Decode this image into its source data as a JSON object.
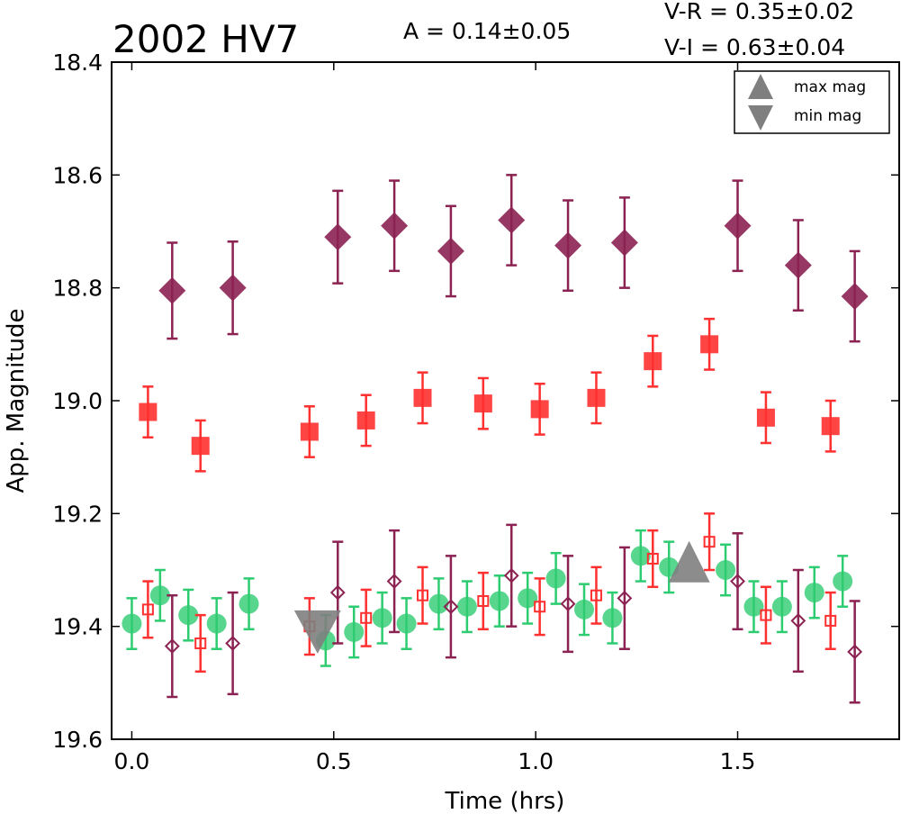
{
  "chart_data": {
    "type": "scatter",
    "title": "2002 HV7",
    "annotations": {
      "amplitude": "A  = 0.14±0.05",
      "color_vr": "V-R = 0.35±0.02",
      "color_vi": "V-I  = 0.63±0.04"
    },
    "xlabel": "Time (hrs)",
    "ylabel": "App. Magnitude",
    "xlim": [
      -0.05,
      1.9
    ],
    "ylim": [
      19.6,
      18.4
    ],
    "y_inverted": true,
    "x_ticks": [
      "0.0",
      "0.5",
      "1.0",
      "1.5"
    ],
    "y_ticks": [
      "18.4",
      "18.6",
      "18.8",
      "19.0",
      "19.2",
      "19.4",
      "19.6"
    ],
    "legend": {
      "position": "top-right",
      "entries": [
        "max mag",
        "min mag"
      ]
    },
    "colors": {
      "purple": "#8b2252",
      "red": "#ff3030",
      "green": "#2ecc71",
      "gray": "#7f7f7f"
    },
    "series": [
      {
        "marker": "diamond-filled",
        "color": "#8b2252",
        "x": [
          0.1,
          0.25,
          0.51,
          0.65,
          0.79,
          0.94,
          1.08,
          1.22,
          1.5,
          1.65,
          1.79
        ],
        "y": [
          18.805,
          18.8,
          18.71,
          18.69,
          18.735,
          18.68,
          18.725,
          18.72,
          18.69,
          18.76,
          18.815
        ],
        "err": [
          0.085,
          0.082,
          0.082,
          0.08,
          0.08,
          0.08,
          0.08,
          0.08,
          0.08,
          0.08,
          0.08
        ]
      },
      {
        "marker": "square-filled",
        "color": "#ff3030",
        "x": [
          0.04,
          0.17,
          0.44,
          0.58,
          0.72,
          0.87,
          1.01,
          1.15,
          1.29,
          1.43,
          1.57,
          1.73
        ],
        "y": [
          19.02,
          19.08,
          19.055,
          19.035,
          18.995,
          19.005,
          19.015,
          18.995,
          18.93,
          18.9,
          19.03,
          19.045
        ],
        "err": [
          0.045,
          0.045,
          0.045,
          0.045,
          0.045,
          0.045,
          0.045,
          0.045,
          0.045,
          0.045,
          0.045,
          0.045
        ]
      },
      {
        "marker": "circle-filled",
        "color": "#2ecc71",
        "x": [
          0.0,
          0.07,
          0.14,
          0.21,
          0.29,
          0.48,
          0.55,
          0.62,
          0.68,
          0.76,
          0.83,
          0.91,
          0.98,
          1.05,
          1.12,
          1.19,
          1.26,
          1.33,
          1.47,
          1.54,
          1.61,
          1.69,
          1.76
        ],
        "y": [
          19.395,
          19.345,
          19.38,
          19.395,
          19.36,
          19.425,
          19.41,
          19.385,
          19.395,
          19.36,
          19.365,
          19.355,
          19.35,
          19.315,
          19.37,
          19.385,
          19.275,
          19.295,
          19.3,
          19.365,
          19.365,
          19.34,
          19.32
        ],
        "err": [
          0.045,
          0.045,
          0.045,
          0.045,
          0.045,
          0.045,
          0.045,
          0.045,
          0.045,
          0.045,
          0.045,
          0.045,
          0.045,
          0.045,
          0.045,
          0.045,
          0.045,
          0.045,
          0.045,
          0.045,
          0.045,
          0.045,
          0.045
        ]
      },
      {
        "marker": "square-open",
        "color": "#ff3030",
        "x": [
          0.04,
          0.17,
          0.44,
          0.58,
          0.72,
          0.87,
          1.01,
          1.15,
          1.29,
          1.43,
          1.57,
          1.73
        ],
        "y": [
          19.37,
          19.43,
          19.4,
          19.385,
          19.345,
          19.355,
          19.365,
          19.345,
          19.28,
          19.25,
          19.38,
          19.39
        ],
        "err": [
          0.05,
          0.05,
          0.05,
          0.05,
          0.05,
          0.05,
          0.05,
          0.05,
          0.05,
          0.05,
          0.05,
          0.05
        ]
      },
      {
        "marker": "diamond-open",
        "color": "#8b2252",
        "x": [
          0.1,
          0.25,
          0.51,
          0.65,
          0.79,
          0.94,
          1.08,
          1.22,
          1.5,
          1.65,
          1.79
        ],
        "y": [
          19.435,
          19.43,
          19.34,
          19.32,
          19.365,
          19.31,
          19.36,
          19.35,
          19.32,
          19.39,
          19.445
        ],
        "err": [
          0.09,
          0.09,
          0.09,
          0.09,
          0.09,
          0.09,
          0.085,
          0.09,
          0.085,
          0.09,
          0.09
        ]
      }
    ],
    "extrema": [
      {
        "label": "max mag",
        "marker": "triangle-up",
        "x": 1.38,
        "y": 19.29,
        "color": "#7f7f7f"
      },
      {
        "label": "min mag",
        "marker": "triangle-down",
        "x": 0.46,
        "y": 19.41,
        "color": "#7f7f7f"
      }
    ]
  }
}
